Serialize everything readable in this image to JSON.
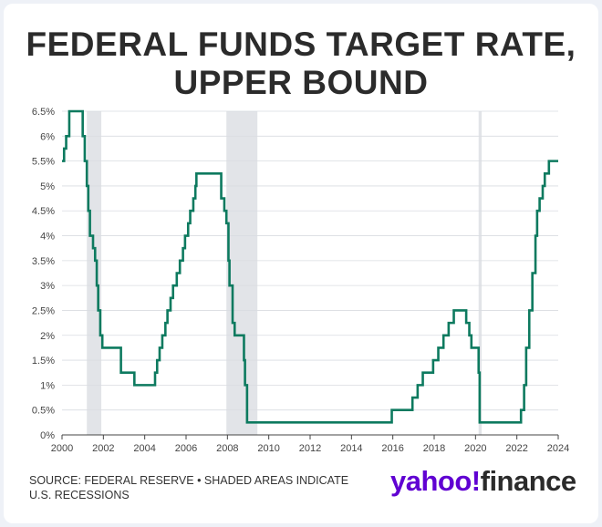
{
  "title_line1": "FEDERAL FUNDS TARGET RATE,",
  "title_line2": "UPPER BOUND",
  "source_line1": "SOURCE: FEDERAL RESERVE • SHADED AREAS INDICATE",
  "source_line2": "U.S. RECESSIONS",
  "logo": {
    "yahoo": "yahoo",
    "bang": "!",
    "finance": "finance",
    "brand_color": "#6001d2"
  },
  "colors": {
    "line": "#0d7a5f",
    "recession": "#e2e4e8",
    "grid": "#d9dce1"
  },
  "chart_data": {
    "type": "line",
    "title": "FEDERAL FUNDS TARGET RATE, UPPER BOUND",
    "xlabel": "",
    "ylabel": "",
    "xlim": [
      2000,
      2024
    ],
    "ylim": [
      0,
      6.5
    ],
    "x_ticks": [
      2000,
      2002,
      2004,
      2006,
      2008,
      2010,
      2012,
      2014,
      2016,
      2018,
      2020,
      2022,
      2024
    ],
    "y_ticks": [
      0,
      0.5,
      1,
      1.5,
      2,
      2.5,
      3,
      3.5,
      4,
      4.5,
      5,
      5.5,
      6,
      6.5
    ],
    "y_tick_labels": [
      "0%",
      "0.5%",
      "1%",
      "1.5%",
      "2%",
      "2.5%",
      "3%",
      "3.5%",
      "4%",
      "4.5%",
      "5%",
      "5.5%",
      "6%",
      "6.5%"
    ],
    "recessions": [
      [
        2001.2,
        2001.9
      ],
      [
        2007.95,
        2009.45
      ],
      [
        2020.15,
        2020.3
      ]
    ],
    "series": [
      {
        "name": "Upper bound",
        "points": [
          [
            2000.0,
            5.5
          ],
          [
            2000.1,
            5.75
          ],
          [
            2000.2,
            6.0
          ],
          [
            2000.35,
            6.5
          ],
          [
            2001.0,
            6.0
          ],
          [
            2001.1,
            5.5
          ],
          [
            2001.2,
            5.0
          ],
          [
            2001.27,
            4.5
          ],
          [
            2001.35,
            4.0
          ],
          [
            2001.5,
            3.75
          ],
          [
            2001.6,
            3.5
          ],
          [
            2001.68,
            3.0
          ],
          [
            2001.75,
            2.5
          ],
          [
            2001.85,
            2.0
          ],
          [
            2001.95,
            1.75
          ],
          [
            2002.85,
            1.25
          ],
          [
            2003.5,
            1.0
          ],
          [
            2004.5,
            1.25
          ],
          [
            2004.6,
            1.5
          ],
          [
            2004.72,
            1.75
          ],
          [
            2004.85,
            2.0
          ],
          [
            2005.0,
            2.25
          ],
          [
            2005.1,
            2.5
          ],
          [
            2005.25,
            2.75
          ],
          [
            2005.37,
            3.0
          ],
          [
            2005.55,
            3.25
          ],
          [
            2005.7,
            3.5
          ],
          [
            2005.85,
            3.75
          ],
          [
            2005.95,
            4.0
          ],
          [
            2006.1,
            4.25
          ],
          [
            2006.2,
            4.5
          ],
          [
            2006.35,
            4.75
          ],
          [
            2006.45,
            5.0
          ],
          [
            2006.5,
            5.25
          ],
          [
            2007.7,
            4.75
          ],
          [
            2007.85,
            4.5
          ],
          [
            2007.95,
            4.25
          ],
          [
            2008.05,
            3.5
          ],
          [
            2008.1,
            3.0
          ],
          [
            2008.25,
            2.25
          ],
          [
            2008.35,
            2.0
          ],
          [
            2008.8,
            1.5
          ],
          [
            2008.85,
            1.0
          ],
          [
            2008.95,
            0.25
          ],
          [
            2015.95,
            0.5
          ],
          [
            2016.95,
            0.75
          ],
          [
            2017.2,
            1.0
          ],
          [
            2017.45,
            1.25
          ],
          [
            2017.95,
            1.5
          ],
          [
            2018.2,
            1.75
          ],
          [
            2018.45,
            2.0
          ],
          [
            2018.7,
            2.25
          ],
          [
            2018.95,
            2.5
          ],
          [
            2019.55,
            2.25
          ],
          [
            2019.7,
            2.0
          ],
          [
            2019.8,
            1.75
          ],
          [
            2020.15,
            1.25
          ],
          [
            2020.2,
            0.25
          ],
          [
            2022.2,
            0.5
          ],
          [
            2022.35,
            1.0
          ],
          [
            2022.45,
            1.75
          ],
          [
            2022.6,
            2.5
          ],
          [
            2022.75,
            3.25
          ],
          [
            2022.9,
            4.0
          ],
          [
            2022.98,
            4.5
          ],
          [
            2023.1,
            4.75
          ],
          [
            2023.25,
            5.0
          ],
          [
            2023.35,
            5.25
          ],
          [
            2023.55,
            5.5
          ],
          [
            2024.0,
            5.5
          ]
        ]
      }
    ]
  }
}
